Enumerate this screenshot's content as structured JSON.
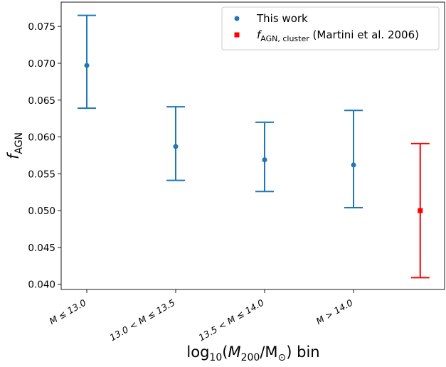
{
  "chart_data": {
    "type": "scatter",
    "title": "",
    "xlabel_parts": [
      "log",
      "10",
      "(",
      "M",
      "200",
      "/M",
      "⊙",
      ") bin"
    ],
    "ylabel_parts": [
      "f",
      "AGN"
    ],
    "ylim": [
      0.0393,
      0.0783
    ],
    "yticks": [
      "0.040",
      "0.045",
      "0.050",
      "0.055",
      "0.060",
      "0.065",
      "0.070",
      "0.075"
    ],
    "ytick_values": [
      0.04,
      0.045,
      0.05,
      0.055,
      0.06,
      0.065,
      0.07,
      0.075
    ],
    "categories": [
      "M ≤ 13.0",
      "13.0 < M ≤ 13.5",
      "13.5 < M ≤ 14.0",
      "M > 14.0"
    ],
    "grid": false,
    "legend_position": "top-right",
    "series": [
      {
        "name": "This work",
        "marker": "circle",
        "color": "#1f77b4",
        "points": [
          {
            "x": 0,
            "y": 0.0697,
            "ylow": 0.0639,
            "yhigh": 0.0765
          },
          {
            "x": 1,
            "y": 0.0587,
            "ylow": 0.0541,
            "yhigh": 0.0641
          },
          {
            "x": 2,
            "y": 0.0569,
            "ylow": 0.0526,
            "yhigh": 0.062
          },
          {
            "x": 3,
            "y": 0.0562,
            "ylow": 0.0504,
            "yhigh": 0.0636
          }
        ]
      },
      {
        "name_parts": [
          "f",
          "AGN, cluster",
          " (Martini et al. 2006)"
        ],
        "marker": "square",
        "color": "#ff0000",
        "points": [
          {
            "x": 3.75,
            "y": 0.05,
            "ylow": 0.0409,
            "yhigh": 0.0591
          }
        ]
      }
    ]
  }
}
